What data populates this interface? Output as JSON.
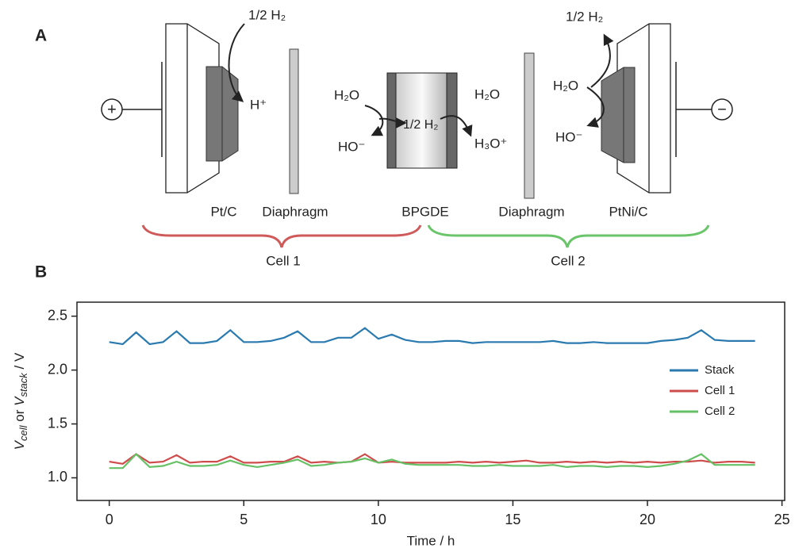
{
  "diagram": {
    "panels": [
      "A",
      "B"
    ],
    "signs": [
      "+",
      "−"
    ],
    "texts": [
      "1/2 H₂",
      "H⁺",
      "Pt/C",
      "Diaphragm",
      "BPGDE",
      "Diaphragm",
      "PtNi/C",
      "Cell 1",
      "Cell 2",
      "H₂O",
      "HO⁻",
      "1/2 H₂",
      "H₂O",
      "H₃O⁺",
      "1/2 H₂",
      "H₂O",
      "HO⁻"
    ]
  },
  "chart_data": {
    "type": "line",
    "xlabel": "Time / h",
    "ylabel_parts": [
      "V",
      "cell",
      " or ",
      "V",
      "stack",
      " / V"
    ],
    "x": [
      0,
      0.5,
      1,
      1.5,
      2,
      2.5,
      3,
      3.5,
      4,
      4.5,
      5,
      5.5,
      6,
      6.5,
      7,
      7.5,
      8,
      8.5,
      9,
      9.5,
      10,
      10.5,
      11,
      11.5,
      12,
      12.5,
      13,
      13.5,
      14,
      14.5,
      15,
      15.5,
      16,
      16.5,
      17,
      17.5,
      18,
      18.5,
      19,
      19.5,
      20,
      20.5,
      21,
      21.5,
      22,
      22.5,
      23,
      23.5,
      24
    ],
    "series": [
      {
        "name": "Stack",
        "color": "#2a7ab0",
        "values": [
          2.26,
          2.24,
          2.35,
          2.24,
          2.26,
          2.36,
          2.25,
          2.25,
          2.27,
          2.37,
          2.26,
          2.26,
          2.27,
          2.3,
          2.36,
          2.26,
          2.26,
          2.3,
          2.3,
          2.39,
          2.29,
          2.33,
          2.28,
          2.26,
          2.26,
          2.27,
          2.27,
          2.25,
          2.26,
          2.26,
          2.26,
          2.26,
          2.26,
          2.27,
          2.25,
          2.25,
          2.26,
          2.25,
          2.25,
          2.25,
          2.25,
          2.27,
          2.28,
          2.3,
          2.37,
          2.28,
          2.27,
          2.27,
          2.27
        ]
      },
      {
        "name": "Cell 1",
        "color": "#cf4c4c",
        "values": [
          1.15,
          1.13,
          1.22,
          1.14,
          1.15,
          1.21,
          1.14,
          1.15,
          1.15,
          1.2,
          1.14,
          1.14,
          1.15,
          1.15,
          1.2,
          1.14,
          1.15,
          1.14,
          1.15,
          1.22,
          1.14,
          1.15,
          1.14,
          1.14,
          1.14,
          1.14,
          1.15,
          1.14,
          1.15,
          1.14,
          1.15,
          1.16,
          1.14,
          1.14,
          1.15,
          1.14,
          1.15,
          1.14,
          1.15,
          1.14,
          1.15,
          1.14,
          1.15,
          1.15,
          1.16,
          1.14,
          1.15,
          1.15,
          1.14
        ]
      },
      {
        "name": "Cell 2",
        "color": "#66c166",
        "values": [
          1.09,
          1.09,
          1.22,
          1.1,
          1.11,
          1.15,
          1.11,
          1.11,
          1.12,
          1.16,
          1.12,
          1.1,
          1.12,
          1.14,
          1.17,
          1.11,
          1.12,
          1.14,
          1.15,
          1.18,
          1.14,
          1.17,
          1.13,
          1.12,
          1.12,
          1.12,
          1.12,
          1.11,
          1.11,
          1.12,
          1.11,
          1.11,
          1.11,
          1.12,
          1.1,
          1.11,
          1.11,
          1.1,
          1.11,
          1.11,
          1.1,
          1.11,
          1.13,
          1.16,
          1.22,
          1.12,
          1.12,
          1.12,
          1.12
        ]
      }
    ],
    "xlim": [
      -1.2,
      25.1
    ],
    "xticks": [
      0,
      5,
      10,
      15,
      20,
      25
    ],
    "ylim": [
      0.79,
      2.63
    ],
    "yticks": [
      {
        "value": 1,
        "label": "1.0"
      },
      1.5,
      {
        "value": 2,
        "label": "2.0"
      },
      2.5
    ],
    "legend": "center right",
    "grid": false
  }
}
